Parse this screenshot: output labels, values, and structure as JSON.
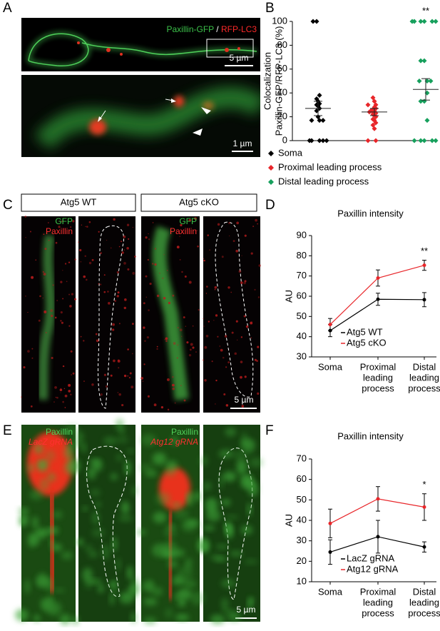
{
  "panel_labels": [
    "A",
    "B",
    "C",
    "D",
    "E",
    "F"
  ],
  "images": {
    "a_top": {
      "labels": [
        "Paxillin-GFP",
        "/",
        "RFP-LC3"
      ],
      "scale": "5 µm"
    },
    "a_bottom": {
      "scale": "1 µm"
    },
    "c": {
      "headers": [
        "Atg5 WT",
        "Atg5 cKO"
      ],
      "labels": [
        "GFP",
        "Paxillin"
      ],
      "scale": "5 µm"
    },
    "e": {
      "left_labels": [
        "Paxillin",
        "LacZ gRNA"
      ],
      "right_labels": [
        "Paxillin",
        "Atg12 gRNA"
      ],
      "scale": "5 µm"
    }
  },
  "chart_data": [
    {
      "type": "strip",
      "ylabel": [
        "Colocalization",
        "Paxillin-GFP/RFP-LC3 (%)"
      ],
      "ylim": [
        0,
        100
      ],
      "yticks": [
        0,
        20,
        40,
        60,
        80,
        100
      ],
      "annotation": "**",
      "series": [
        {
          "name": "Soma",
          "color": "#000000",
          "values": [
            100,
            100,
            38,
            35,
            33,
            31,
            30,
            29,
            27,
            25,
            20,
            17,
            17,
            17,
            0,
            0,
            0,
            0,
            0
          ],
          "mean": 27,
          "sem": 6
        },
        {
          "name": "Proximal leading process",
          "color": "#e8262a",
          "values": [
            36,
            33,
            30,
            30,
            28,
            27,
            26,
            25,
            25,
            24,
            24,
            23,
            22,
            21,
            20,
            18,
            17,
            15,
            13,
            10,
            0,
            0
          ],
          "mean": 24,
          "sem": 3
        },
        {
          "name": "Distal leading process",
          "color": "#17a05d",
          "values": [
            100,
            100,
            100,
            100,
            100,
            100,
            67,
            67,
            50,
            50,
            50,
            40,
            33,
            33,
            17,
            0,
            0,
            0,
            0,
            0
          ],
          "mean": 43,
          "sem": 9
        }
      ]
    },
    {
      "type": "line",
      "title": "Paxillin intensity",
      "ylabel": "AU",
      "ylim": [
        30,
        90
      ],
      "yticks": [
        30,
        40,
        50,
        60,
        70,
        80,
        90
      ],
      "annotation": "**",
      "categories": [
        [
          "Soma"
        ],
        [
          "Proximal",
          "leading",
          "process"
        ],
        [
          "Distal",
          "leading",
          "process"
        ]
      ],
      "series": [
        {
          "name": "Atg5 WT",
          "color": "#000000",
          "values": [
            43,
            58.5,
            58.3
          ],
          "errors": [
            3,
            3,
            3.5
          ]
        },
        {
          "name": "Atg5 cKO",
          "color": "#e8262a",
          "values": [
            46,
            69,
            75.3
          ],
          "errors": [
            3,
            4,
            2.5
          ]
        }
      ]
    },
    {
      "type": "line",
      "title": "Paxillin intensity",
      "ylabel": "AU",
      "ylim": [
        10,
        70
      ],
      "yticks": [
        10,
        20,
        30,
        40,
        50,
        60,
        70
      ],
      "annotation": "*",
      "categories": [
        [
          "Soma"
        ],
        [
          "Proximal",
          "leading",
          "process"
        ],
        [
          "Distal",
          "leading",
          "process"
        ]
      ],
      "series": [
        {
          "name": "LacZ gRNA",
          "color": "#000000",
          "values": [
            24.5,
            32,
            27
          ],
          "errors": [
            6,
            8,
            2.5
          ]
        },
        {
          "name": "Atg12 gRNA",
          "color": "#e8262a",
          "values": [
            38.5,
            50.5,
            46.5
          ],
          "errors": [
            7,
            6,
            6.5
          ]
        }
      ]
    }
  ]
}
